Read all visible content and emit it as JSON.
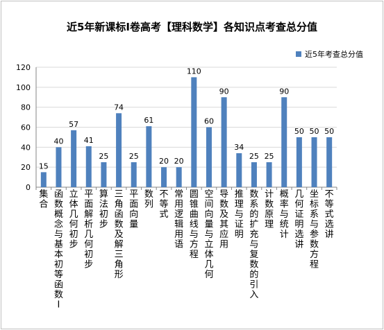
{
  "chart_data": {
    "type": "bar",
    "title": "近5年新课标Ⅰ卷高考【理科数学】各知识点考查总分值",
    "categories": [
      "集合",
      "函数概念与基本初等函数Ⅰ",
      "立体几何初步",
      "平面解析几何初步",
      "算法初步",
      "三角函数及解三角形",
      "平面向量",
      "数列",
      "不等式",
      "常用逻辑用语",
      "圆锥曲线与方程",
      "空间向量与立体几何",
      "导数及其应用",
      "推理与证明",
      "数系的扩充与复数的引入",
      "计数原理",
      "概率与统计",
      "几何证明选讲",
      "坐标系与参数方程",
      "不等式选讲"
    ],
    "series": [
      {
        "name": "近5年考查总分值",
        "values": [
          15,
          40,
          57,
          41,
          25,
          74,
          25,
          61,
          20,
          20,
          110,
          60,
          90,
          34,
          25,
          25,
          90,
          50,
          50,
          50
        ]
      }
    ],
    "yticks": [
      "0",
      "20",
      "40",
      "60",
      "80",
      "100",
      "120"
    ],
    "ylim": [
      0,
      120
    ],
    "xlabel": "",
    "ylabel": "",
    "legend_position": "top-right",
    "grid": true,
    "colors": {
      "bar": "#4f81bd",
      "grid": "#d9d9d9",
      "axis": "#868686"
    }
  }
}
